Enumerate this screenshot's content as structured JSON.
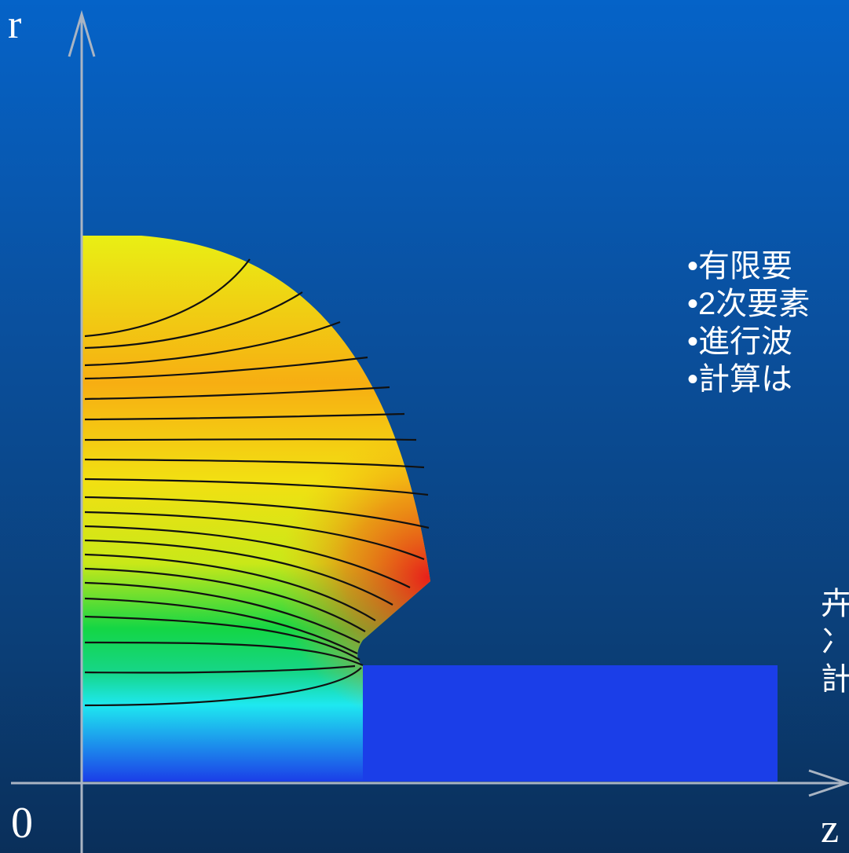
{
  "axes": {
    "r_label": "r",
    "z_label": "z",
    "origin_label": "0"
  },
  "bullets": [
    "•有限要",
    "•2次要素",
    "•進行波",
    "•計算は"
  ],
  "side_text": [
    "卉",
    "冫",
    "計"
  ],
  "colors": {
    "background_top": "#0563c8",
    "background_bottom": "#0a2f5a",
    "axis": "#a9b4c3",
    "field_high": "#e8201a",
    "field_mid_high": "#f7ae12",
    "field_mid": "#e9ef14",
    "field_mid_low": "#14d645",
    "field_low": "#1ee8f0",
    "field_lowest": "#1b3ee8",
    "contour": "#111111"
  }
}
